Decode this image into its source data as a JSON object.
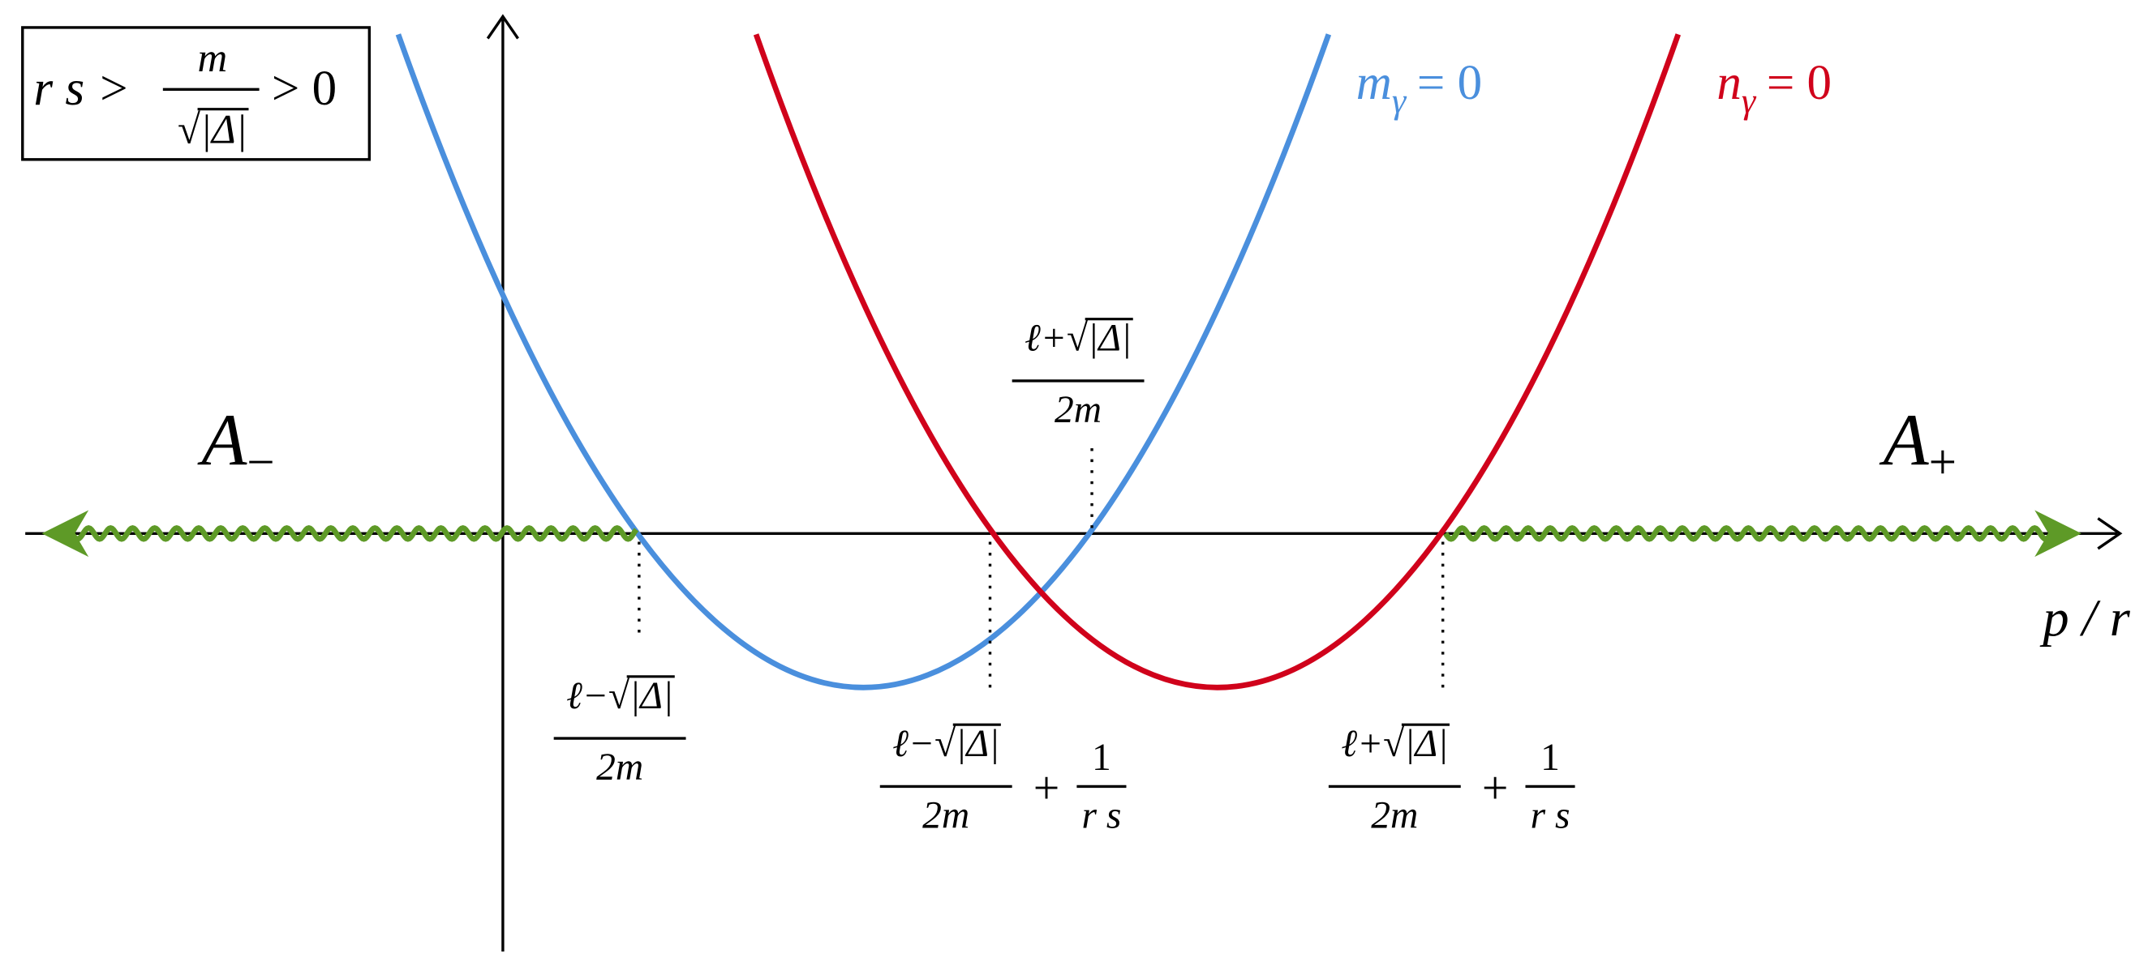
{
  "condition": {
    "lhs": "r s >",
    "numerator": "m",
    "denominator_prefix": "√",
    "denominator_radicand": "|Δ|",
    "rhs": "> 0"
  },
  "curves": [
    {
      "label": "m",
      "subscript": "γ",
      "rhs": "= 0"
    },
    {
      "label": "n",
      "subscript": "γ",
      "rhs": "= 0"
    }
  ],
  "regions": [
    {
      "label": "A",
      "subscript": "−"
    },
    {
      "label": "A",
      "subscript": "+"
    }
  ],
  "axis_label": "p / r",
  "annotations": [
    {
      "prefix": "ℓ−√",
      "radicand": "|Δ|",
      "denominator": "2m"
    },
    {
      "prefix": "ℓ−√",
      "radicand": "|Δ|",
      "denominator": "2m",
      "operator": "+",
      "term_numerator": "1",
      "term_denominator": "r s"
    },
    {
      "prefix": "ℓ+√",
      "radicand": "|Δ|",
      "denominator": "2m"
    },
    {
      "prefix": "ℓ+√",
      "radicand": "|Δ|",
      "denominator": "2m",
      "operator": "+",
      "term_numerator": "1",
      "term_denominator": "r s"
    }
  ]
}
